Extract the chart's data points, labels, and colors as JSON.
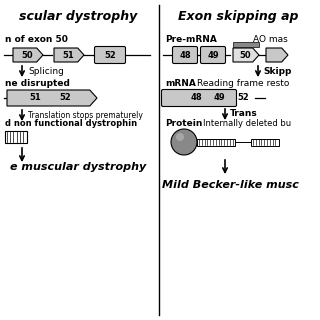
{
  "bg_color": "#ffffff",
  "title_left": "scular dystrophy",
  "title_right": "Exon skipping ap",
  "left": {
    "step1_label": "n of exon 50",
    "exons_row1": [
      "50",
      "51",
      "52"
    ],
    "arrow1_label": "Splicing",
    "step2_label": "ne disrupted",
    "exons_row2": [
      "51",
      "52"
    ],
    "arrow2_label": "Translation stops prematurely",
    "step3_label": "d non functional dystrophin",
    "outcome": "e muscular dystrophy"
  },
  "right": {
    "premrna_label": "Pre-mRNA",
    "ao_label": "AO mas",
    "exons_row1": [
      "48",
      "49",
      "50"
    ],
    "skip_label": "Skipp",
    "mrna_label": "mRNA",
    "reading_label": "Reading frame resto",
    "exons_row2": [
      "48",
      "49",
      "52"
    ],
    "trans_label": "Trans",
    "protein_label": "Protein",
    "internally_label": "Internally deleted bu",
    "outcome": "Mild Becker-like musc"
  },
  "gray_light": "#c8c8c8",
  "gray_dark": "#888888",
  "black": "#000000",
  "white": "#ffffff"
}
